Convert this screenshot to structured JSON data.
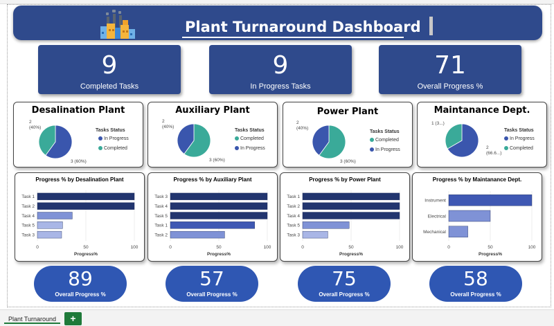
{
  "header": {
    "title": "Plant Turnaround Dashboard",
    "icon": "factory-icon"
  },
  "kpis": [
    {
      "value": "9",
      "label": "Completed Tasks"
    },
    {
      "value": "9",
      "label": "In Progress Tasks"
    },
    {
      "value": "71",
      "label": "Overall Progress %"
    }
  ],
  "colors": {
    "navy": "#2f4a8c",
    "pill": "#2f57b3",
    "in_progress": "#3a56ad",
    "completed": "#3aaa99",
    "bar_dark": "#22356f",
    "bar_mid": "#3f58b3",
    "bar_light": "#7f92d6",
    "bar_pale": "#a9b6e6"
  },
  "pies": [
    {
      "title": "Desalination Plant",
      "legend_title": "Tasks Status",
      "legend": [
        "In Progress",
        "Completed"
      ],
      "labels": {
        "small_a": "2",
        "small_b": "(40%)",
        "large": "3 (60%)"
      }
    },
    {
      "title": "Auxiliary Plant",
      "legend_title": "Tasks Status",
      "legend": [
        "Completed",
        "In Progress"
      ],
      "labels": {
        "small_a": "2",
        "small_b": "(40%)",
        "large": "3 (60%)"
      }
    },
    {
      "title": "Power Plant",
      "legend_title": "Tasks Status",
      "legend": [
        "Completed",
        "In Progress"
      ],
      "labels": {
        "small_a": "2",
        "small_b": "(40%)",
        "large": "3 (60%)"
      }
    },
    {
      "title": "Maintanance Dept.",
      "legend_title": "Tasks Status",
      "legend": [
        "In Progress",
        "Completed"
      ],
      "labels": {
        "small_a": "1 (3...)",
        "large_a": "2",
        "large_b": "(66.6...)"
      }
    }
  ],
  "pills": [
    {
      "value": "89",
      "label": "Overall Progress %"
    },
    {
      "value": "57",
      "label": "Overall Progress %"
    },
    {
      "value": "75",
      "label": "Overall Progress %"
    },
    {
      "value": "58",
      "label": "Overall Progress %"
    }
  ],
  "sheet": {
    "tab": "Plant Turnaround",
    "add": "+"
  },
  "chart_data": [
    {
      "type": "pie",
      "title": "Desalination Plant",
      "legend_title": "Tasks Status",
      "slices": [
        {
          "name": "In Progress",
          "value": 3,
          "label": "3 (60%)"
        },
        {
          "name": "Completed",
          "value": 2,
          "label": "2 (40%)"
        }
      ]
    },
    {
      "type": "pie",
      "title": "Auxiliary Plant",
      "legend_title": "Tasks Status",
      "slices": [
        {
          "name": "Completed",
          "value": 3,
          "label": "3 (60%)"
        },
        {
          "name": "In Progress",
          "value": 2,
          "label": "2 (40%)"
        }
      ]
    },
    {
      "type": "pie",
      "title": "Power Plant",
      "legend_title": "Tasks Status",
      "slices": [
        {
          "name": "Completed",
          "value": 3,
          "label": "3 (60%)"
        },
        {
          "name": "In Progress",
          "value": 2,
          "label": "2 (40%)"
        }
      ]
    },
    {
      "type": "pie",
      "title": "Maintanance Dept.",
      "legend_title": "Tasks Status",
      "slices": [
        {
          "name": "In Progress",
          "value": 2,
          "label": "2 (66.6...)"
        },
        {
          "name": "Completed",
          "value": 1,
          "label": "1 (3...)"
        }
      ]
    },
    {
      "type": "bar",
      "orientation": "horizontal",
      "title": "Progress % by Desalination Plant",
      "xlabel": "Progress%",
      "categories": [
        "Task 1",
        "Task 2",
        "Task 4",
        "Task 5",
        "Task 3"
      ],
      "values": [
        100,
        100,
        36,
        26,
        25
      ],
      "xlim": [
        0,
        100
      ],
      "xticks": [
        0,
        50,
        100
      ]
    },
    {
      "type": "bar",
      "orientation": "horizontal",
      "title": "Progress % by Auxiliary Plant",
      "xlabel": "Progress%",
      "categories": [
        "Task 3",
        "Task 4",
        "Task 5",
        "Task 1",
        "Task 2"
      ],
      "values": [
        100,
        100,
        100,
        87,
        56
      ],
      "xlim": [
        0,
        100
      ],
      "xticks": [
        0,
        50,
        100
      ]
    },
    {
      "type": "bar",
      "orientation": "horizontal",
      "title": "Progress % by Power Plant",
      "xlabel": "Progress%",
      "categories": [
        "Task 1",
        "Task 2",
        "Task 4",
        "Task 5",
        "Task 3"
      ],
      "values": [
        100,
        100,
        100,
        48,
        26
      ],
      "xlim": [
        0,
        100
      ],
      "xticks": [
        0,
        50,
        100
      ]
    },
    {
      "type": "bar",
      "orientation": "horizontal",
      "title": "Progress % by Maintanance Dept.",
      "xlabel": "Progress%",
      "categories": [
        "Instrument",
        "Electrical",
        "Mechanical"
      ],
      "values": [
        100,
        50,
        23
      ],
      "xlim": [
        0,
        100
      ],
      "xticks": [
        0,
        50,
        100
      ]
    }
  ]
}
